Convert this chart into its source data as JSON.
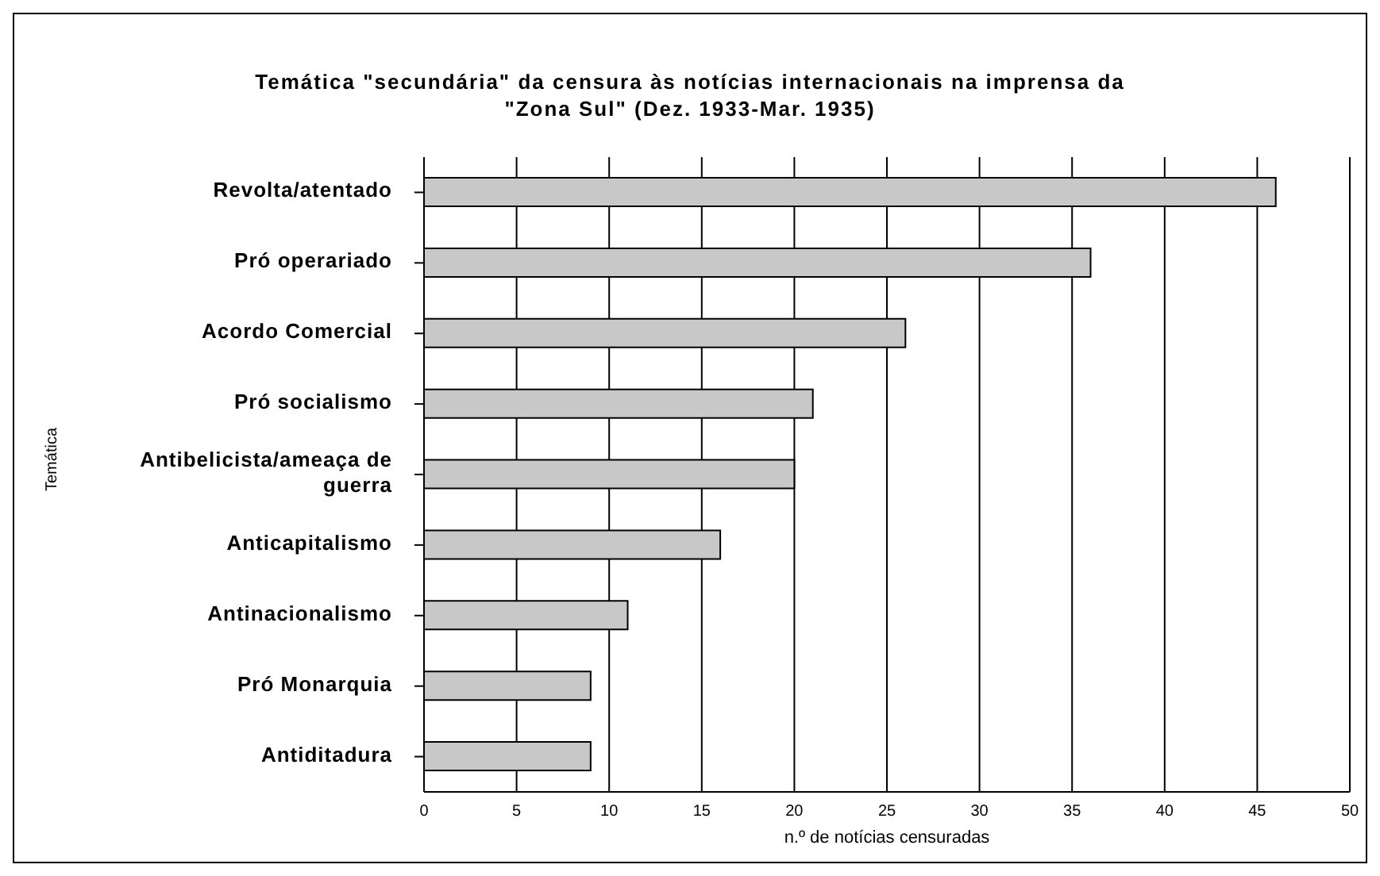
{
  "chart_data": {
    "type": "bar",
    "orientation": "horizontal",
    "title": "Temática \"secundária\" da censura às notícias internacionais na imprensa da \"Zona Sul\" (Dez. 1933-Mar. 1935)",
    "xlabel": "n.º de notícias censuradas",
    "ylabel": "Temática",
    "categories": [
      "Revolta/atentado",
      "Pró operariado",
      "Acordo Comercial",
      "Pró socialismo",
      "Antibelicista/ameaça de guerra",
      "Anticapitalismo",
      "Antinacionalismo",
      "Pró Monarquia",
      "Antiditadura"
    ],
    "values": [
      46,
      36,
      26,
      21,
      20,
      16,
      11,
      9,
      9
    ],
    "color": "#c8c8c8",
    "xlim": [
      0,
      50
    ],
    "xticks": [
      0,
      5,
      10,
      15,
      20,
      25,
      30,
      35,
      40,
      45,
      50
    ],
    "grid": "x"
  }
}
